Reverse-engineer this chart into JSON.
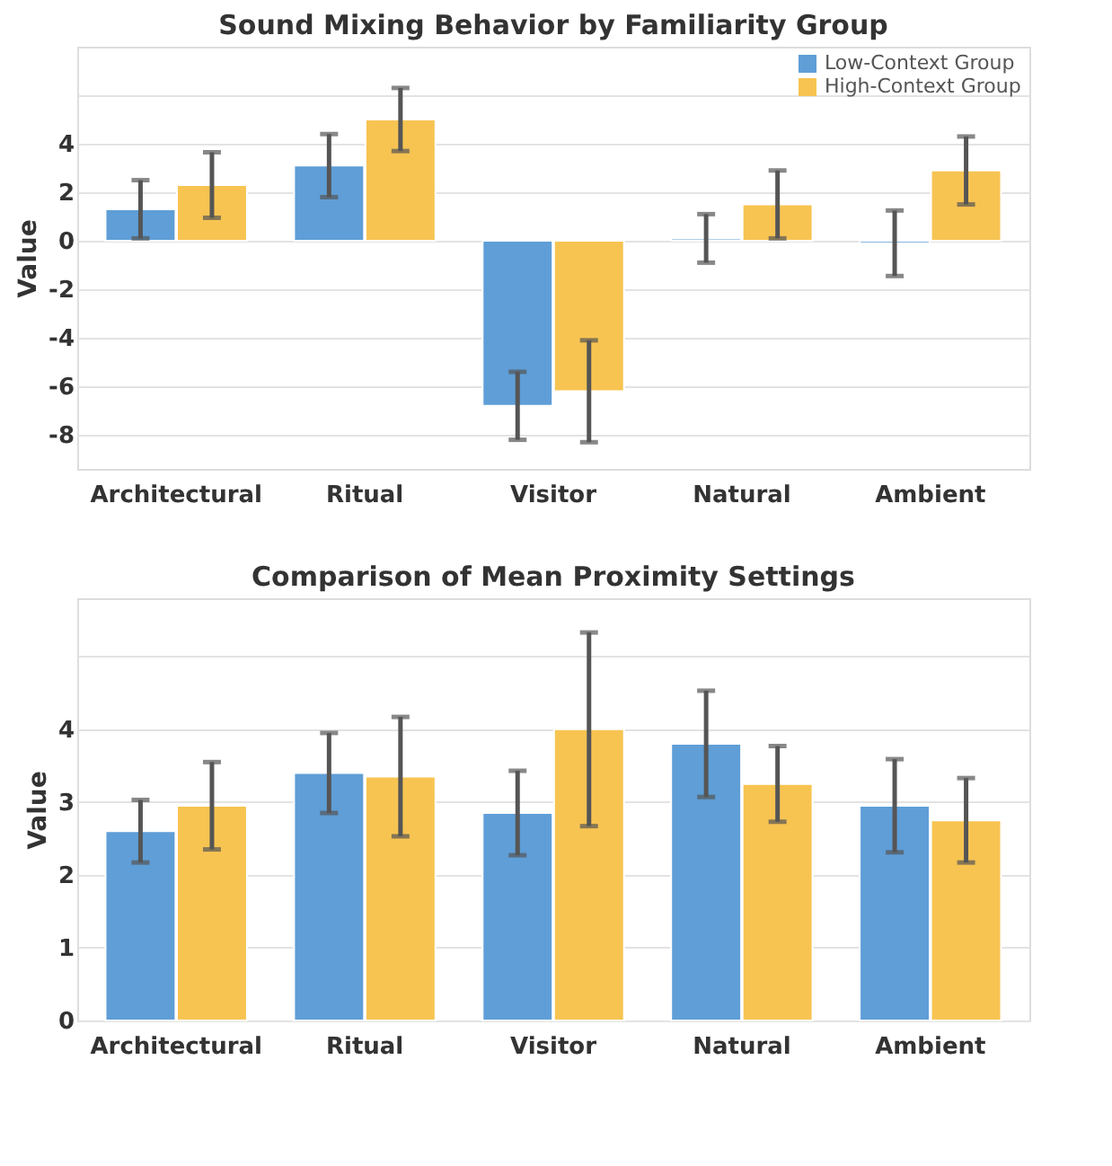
{
  "chart_data": [
    {
      "type": "bar",
      "title": "Sound Mixing Behavior by Familiarity Group",
      "ylabel": "Value",
      "categories": [
        "Architectural",
        "Ritual",
        "Visitor",
        "Natural",
        "Ambient"
      ],
      "series": [
        {
          "name": "Low-Context Group",
          "color": "#5f9ed7",
          "values": [
            1.3,
            3.1,
            -6.8,
            0.1,
            -0.1
          ],
          "errors": [
            1.2,
            1.3,
            1.4,
            1.0,
            1.35
          ]
        },
        {
          "name": "High-Context Group",
          "color": "#f7c452",
          "values": [
            2.3,
            5.0,
            -6.2,
            1.5,
            2.9
          ],
          "errors": [
            1.35,
            1.3,
            2.1,
            1.4,
            1.4
          ]
        }
      ],
      "ylim": [
        -9.4,
        8
      ],
      "yticks": [
        {
          "value": 6,
          "label": null
        },
        4,
        2,
        0,
        -2,
        -4,
        -6,
        -8
      ],
      "grid": "y",
      "legend": "top right"
    },
    {
      "type": "bar",
      "title": "Comparison of Mean Proximity Settings",
      "ylabel": "Value",
      "categories": [
        "Architectural",
        "Ritual",
        "Visitor",
        "Natural",
        "Ambient"
      ],
      "series": [
        {
          "name": "Low-Context Group",
          "color": "#5f9ed7",
          "values": [
            2.6,
            3.4,
            2.85,
            3.8,
            2.95
          ],
          "errors": [
            0.43,
            0.55,
            0.58,
            0.73,
            0.64
          ]
        },
        {
          "name": "High-Context Group",
          "color": "#f7c452",
          "values": [
            2.95,
            3.35,
            4.0,
            3.25,
            2.75
          ],
          "errors": [
            0.6,
            0.82,
            1.33,
            0.52,
            0.58
          ]
        }
      ],
      "ylim": [
        0,
        5.8
      ],
      "yticks": [
        0,
        1,
        2,
        3,
        4,
        {
          "value": 5,
          "label": null
        }
      ],
      "grid": "y",
      "legend": "top right"
    }
  ]
}
